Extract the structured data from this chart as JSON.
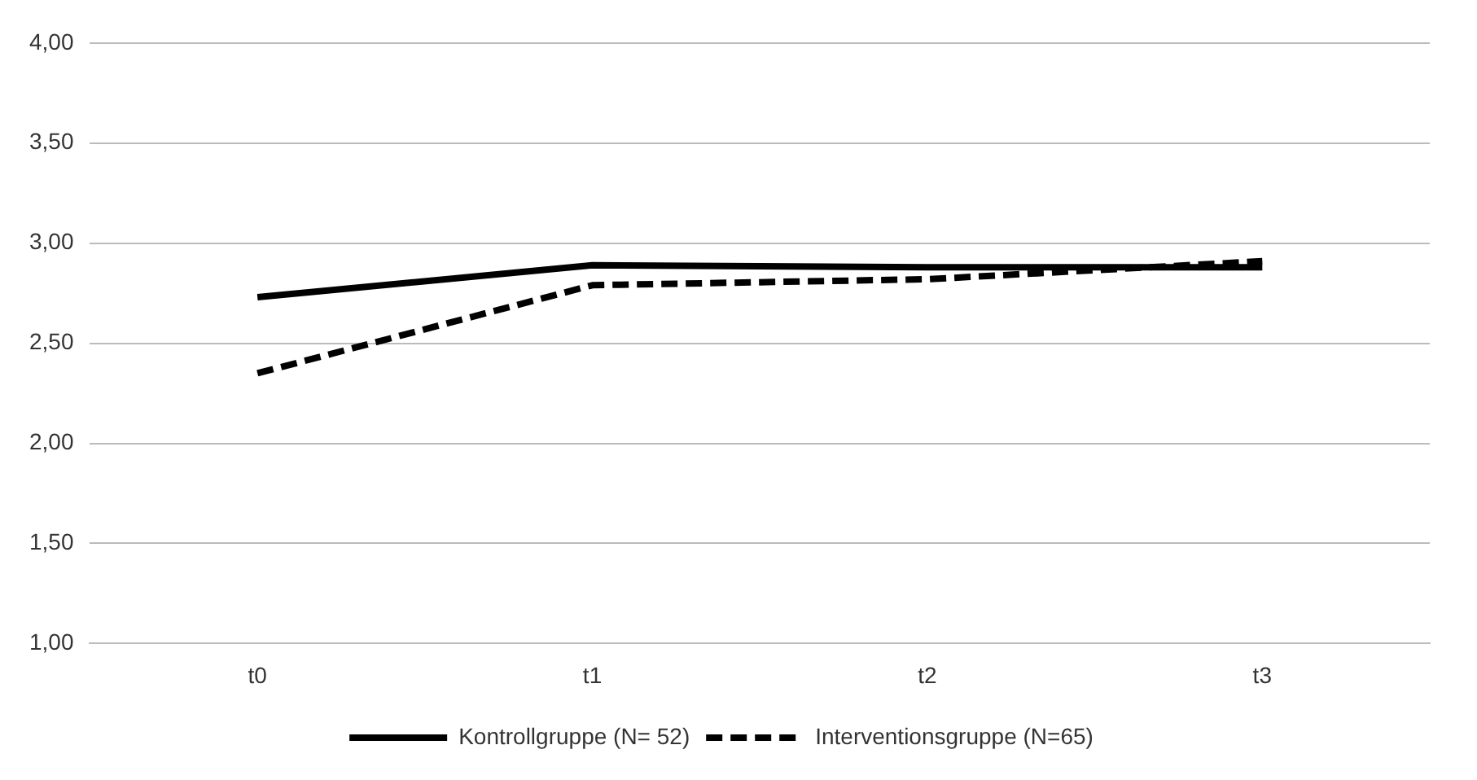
{
  "chart_data": {
    "type": "line",
    "categories": [
      "t0",
      "t1",
      "t2",
      "t3"
    ],
    "series": [
      {
        "name": "Kontrollgruppe (N= 52)",
        "color": "#000000",
        "values": [
          2.73,
          2.89,
          2.88,
          2.88
        ],
        "line_style": "solid"
      },
      {
        "name": "Interventionsgruppe (N=65)",
        "color": "#000000",
        "values": [
          2.35,
          2.79,
          2.82,
          2.91
        ],
        "line_style": "dashed"
      }
    ],
    "ylim": [
      1,
      4
    ],
    "yticks": [
      {
        "value": 1,
        "label": "1,00"
      },
      {
        "value": 1.5,
        "label": "1,50"
      },
      {
        "value": 2,
        "label": "2,00"
      },
      {
        "value": 2.5,
        "label": "2,50"
      },
      {
        "value": 3,
        "label": "3,00"
      },
      {
        "value": 3.5,
        "label": "3,50"
      },
      {
        "value": 4,
        "label": "4,00"
      }
    ],
    "grid": "y",
    "legend": "bottom",
    "marker": "none"
  }
}
